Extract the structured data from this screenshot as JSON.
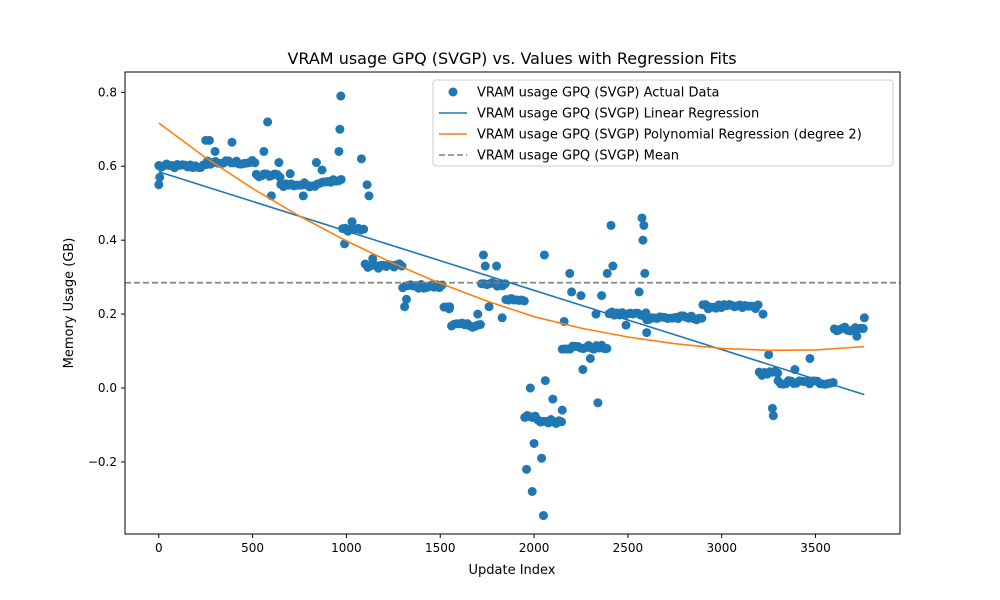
{
  "chart_data": {
    "type": "scatter",
    "title": "VRAM usage GPQ (SVGP) vs. Values with Regression Fits",
    "xlabel": "Update Index",
    "ylabel": "Memory Usage (GB)",
    "xlim": [
      -180,
      3950
    ],
    "ylim": [
      -0.395,
      0.855
    ],
    "xticks": [
      0,
      500,
      1000,
      1500,
      2000,
      2500,
      3000,
      3500
    ],
    "xtick_labels": [
      "0",
      "500",
      "1000",
      "1500",
      "2000",
      "2500",
      "3000",
      "3500"
    ],
    "yticks": [
      -0.2,
      0.0,
      0.2,
      0.4,
      0.6,
      0.8
    ],
    "ytick_labels": [
      "−0.2",
      "0.0",
      "0.2",
      "0.4",
      "0.6",
      "0.8"
    ],
    "grid": false,
    "legend_position": "upper right",
    "colors": {
      "actual": "#1f77b4",
      "linear": "#1f77b4",
      "poly": "#ff7f0e",
      "mean": "#7f7f7f"
    },
    "series": [
      {
        "name": "VRAM usage GPQ (SVGP) Actual Data",
        "kind": "scatter",
        "segments": [
          {
            "x": [
              0,
              260
            ],
            "y": 0.6
          },
          {
            "x": [
              260,
              520
            ],
            "y": 0.61
          },
          {
            "x": [
              520,
              650
            ],
            "y": 0.575
          },
          {
            "x": [
              650,
              860
            ],
            "y": 0.55
          },
          {
            "x": [
              860,
              980
            ],
            "y": 0.56
          },
          {
            "x": [
              980,
              1100
            ],
            "y": 0.43
          },
          {
            "x": [
              1100,
              1300
            ],
            "y": 0.33
          },
          {
            "x": [
              1300,
              1520
            ],
            "y": 0.275
          },
          {
            "x": [
              1520,
              1560
            ],
            "y": 0.22
          },
          {
            "x": [
              1560,
              1720
            ],
            "y": 0.17
          },
          {
            "x": [
              1720,
              1850
            ],
            "y": 0.28
          },
          {
            "x": [
              1850,
              1950
            ],
            "y": 0.24
          },
          {
            "x": [
              1950,
              2020
            ],
            "y": -0.08
          },
          {
            "x": [
              2020,
              2150
            ],
            "y": -0.09
          },
          {
            "x": [
              2150,
              2400
            ],
            "y": 0.11
          },
          {
            "x": [
              2400,
              2600
            ],
            "y": 0.2
          },
          {
            "x": [
              2600,
              2900
            ],
            "y": 0.19
          },
          {
            "x": [
              2900,
              3200
            ],
            "y": 0.22
          },
          {
            "x": [
              3200,
              3300
            ],
            "y": 0.04
          },
          {
            "x": [
              3300,
              3600
            ],
            "y": 0.015
          },
          {
            "x": [
              3600,
              3760
            ],
            "y": 0.16
          }
        ],
        "outliers": [
          [
            0,
            0.55
          ],
          [
            5,
            0.57
          ],
          [
            250,
            0.67
          ],
          [
            270,
            0.67
          ],
          [
            300,
            0.64
          ],
          [
            390,
            0.665
          ],
          [
            580,
            0.72
          ],
          [
            560,
            0.64
          ],
          [
            600,
            0.52
          ],
          [
            640,
            0.61
          ],
          [
            700,
            0.58
          ],
          [
            770,
            0.52
          ],
          [
            840,
            0.61
          ],
          [
            870,
            0.59
          ],
          [
            960,
            0.64
          ],
          [
            965,
            0.7
          ],
          [
            970,
            0.79
          ],
          [
            990,
            0.39
          ],
          [
            1030,
            0.45
          ],
          [
            1080,
            0.62
          ],
          [
            1110,
            0.55
          ],
          [
            1120,
            0.52
          ],
          [
            1140,
            0.35
          ],
          [
            1320,
            0.24
          ],
          [
            1310,
            0.22
          ],
          [
            1550,
            0.22
          ],
          [
            1700,
            0.2
          ],
          [
            1730,
            0.36
          ],
          [
            1740,
            0.33
          ],
          [
            1760,
            0.22
          ],
          [
            1800,
            0.33
          ],
          [
            1830,
            0.19
          ],
          [
            1960,
            -0.22
          ],
          [
            1980,
            0.0
          ],
          [
            1990,
            -0.28
          ],
          [
            2000,
            -0.15
          ],
          [
            2040,
            -0.19
          ],
          [
            2050,
            -0.345
          ],
          [
            2055,
            0.36
          ],
          [
            2060,
            0.02
          ],
          [
            2100,
            -0.03
          ],
          [
            2150,
            -0.06
          ],
          [
            2160,
            0.18
          ],
          [
            2190,
            0.31
          ],
          [
            2200,
            0.26
          ],
          [
            2250,
            0.25
          ],
          [
            2260,
            0.05
          ],
          [
            2300,
            0.08
          ],
          [
            2330,
            0.2
          ],
          [
            2340,
            -0.04
          ],
          [
            2360,
            0.25
          ],
          [
            2390,
            0.31
          ],
          [
            2410,
            0.44
          ],
          [
            2420,
            0.33
          ],
          [
            2490,
            0.17
          ],
          [
            2560,
            0.26
          ],
          [
            2575,
            0.46
          ],
          [
            2580,
            0.4
          ],
          [
            2585,
            0.44
          ],
          [
            2590,
            0.31
          ],
          [
            2600,
            0.15
          ],
          [
            3220,
            0.2
          ],
          [
            3250,
            0.09
          ],
          [
            3270,
            -0.055
          ],
          [
            3275,
            -0.075
          ],
          [
            3390,
            0.05
          ],
          [
            3470,
            0.08
          ],
          [
            3720,
            0.14
          ],
          [
            3760,
            0.19
          ]
        ]
      },
      {
        "name": "VRAM usage GPQ (SVGP) Linear Regression",
        "kind": "line",
        "x": [
          0,
          3760
        ],
        "y": [
          0.585,
          -0.018
        ]
      },
      {
        "name": "VRAM usage GPQ (SVGP) Polynomial Regression (degree 2)",
        "kind": "line",
        "x": [
          0,
          250,
          500,
          750,
          1000,
          1250,
          1500,
          1750,
          2000,
          2250,
          2500,
          2750,
          3000,
          3250,
          3500,
          3760
        ],
        "y": [
          0.717,
          0.623,
          0.54,
          0.465,
          0.398,
          0.337,
          0.283,
          0.235,
          0.193,
          0.162,
          0.138,
          0.12,
          0.107,
          0.102,
          0.103,
          0.112
        ]
      },
      {
        "name": "VRAM usage GPQ (SVGP) Mean",
        "kind": "hline",
        "y": 0.285
      }
    ]
  }
}
